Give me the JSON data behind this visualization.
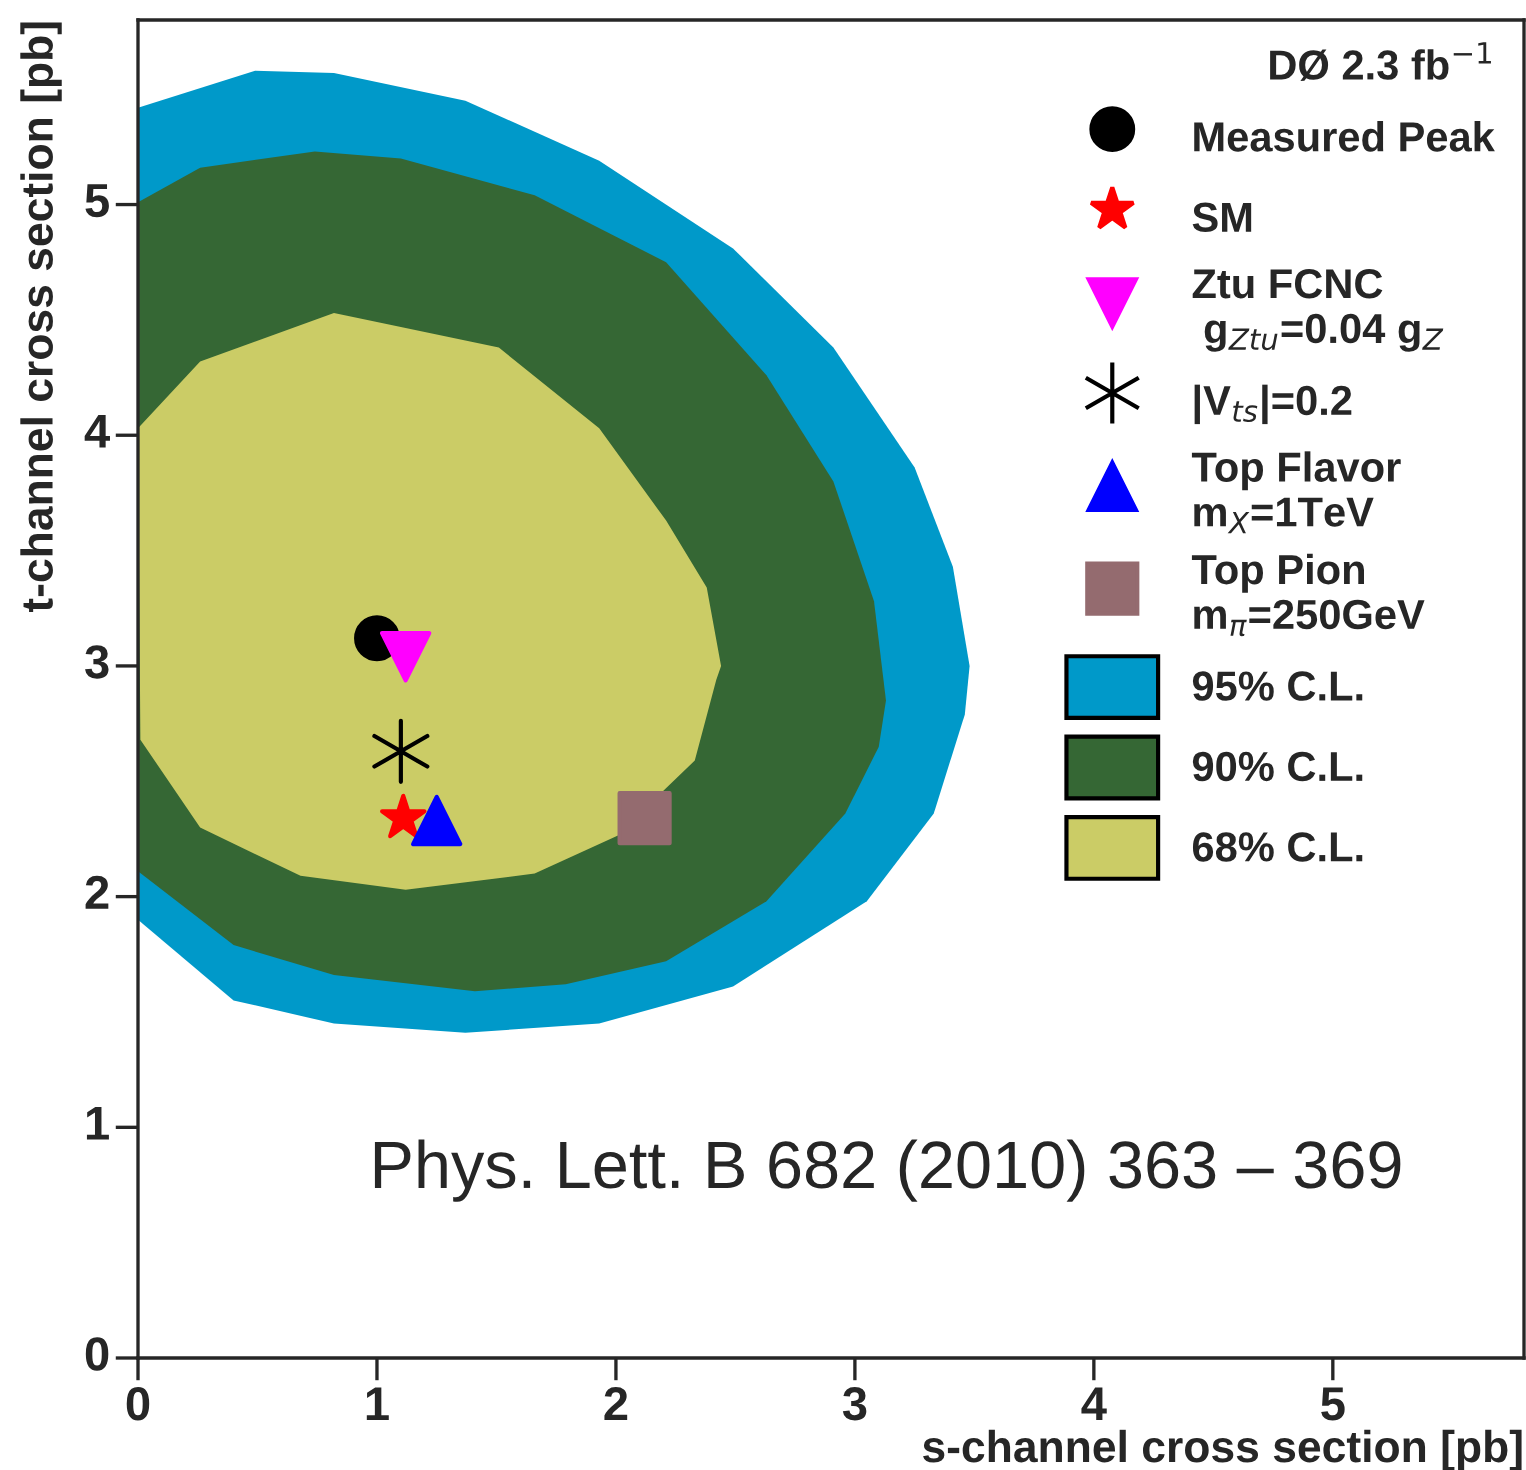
{
  "chart_data": {
    "type": "scatter",
    "xlabel": "s-channel cross section [pb]",
    "ylabel": "t-channel cross section [pb]",
    "legend_title": "DØ 2.3 fb$^{−1}$",
    "xlim": [
      0,
      5.8
    ],
    "ylim": [
      0,
      5.8
    ],
    "xticks": [
      0,
      1,
      2,
      3,
      4,
      5
    ],
    "yticks": [
      0,
      1,
      2,
      3,
      4,
      5
    ],
    "grid": false,
    "legend": "top right",
    "annotations": [
      "Phys. Lett. B 682 (2010) 363 – 369"
    ],
    "series": [
      {
        "name": "95% C.L.",
        "type": "area",
        "color": "#0099c9",
        "x": [
          0,
          0.49,
          0.82,
          1.37,
          1.93,
          2.49,
          2.91,
          3.25,
          3.41,
          3.48,
          3.46,
          3.33,
          3.05,
          2.49,
          1.93,
          1.37,
          0.82,
          0.4,
          0
        ],
        "values": [
          5.42,
          5.58,
          5.57,
          5.45,
          5.19,
          4.81,
          4.38,
          3.86,
          3.43,
          3.0,
          2.79,
          2.36,
          1.98,
          1.61,
          1.45,
          1.41,
          1.45,
          1.55,
          1.9
        ]
      },
      {
        "name": "90% C.L.",
        "type": "area",
        "color": "#356734",
        "x": [
          0,
          0.26,
          0.74,
          1.1,
          1.66,
          2.21,
          2.63,
          2.91,
          3.08,
          3.13,
          3.1,
          2.96,
          2.63,
          2.21,
          1.79,
          1.41,
          0.82,
          0.4,
          0
        ],
        "values": [
          5.01,
          5.16,
          5.23,
          5.2,
          5.04,
          4.75,
          4.26,
          3.8,
          3.28,
          2.85,
          2.65,
          2.36,
          1.98,
          1.72,
          1.62,
          1.59,
          1.66,
          1.79,
          2.11
        ]
      },
      {
        "name": "68% C.L.",
        "type": "area",
        "color": "#cbcc66",
        "x": [
          0,
          0.26,
          0.82,
          1.51,
          1.93,
          2.21,
          2.38,
          2.44,
          2.42,
          2.33,
          2.18,
          2.02,
          1.66,
          1.12,
          0.68,
          0.26,
          0.01
        ],
        "values": [
          4.03,
          4.32,
          4.53,
          4.38,
          4.03,
          3.63,
          3.34,
          3.0,
          2.94,
          2.59,
          2.44,
          2.27,
          2.1,
          2.03,
          2.09,
          2.3,
          2.68
        ]
      },
      {
        "name": "Measured Peak",
        "marker": "circle",
        "color": "#000000",
        "x": [
          1.0
        ],
        "values": [
          3.12
        ]
      },
      {
        "name": "SM",
        "marker": "star",
        "color": "#ff0000",
        "x": [
          1.11
        ],
        "values": [
          2.34
        ]
      },
      {
        "name": "Ztu FCNC\n g$_{Ztu}$=0.04 g$_{Z}$",
        "marker": "triangle_down",
        "color": "#ff00ff",
        "x": [
          1.12
        ],
        "values": [
          3.04
        ]
      },
      {
        "name": "|V$_{ts}$|=0.2",
        "marker": "cross",
        "color": "#000000",
        "x": [
          1.1
        ],
        "values": [
          2.63
        ]
      },
      {
        "name": "Top Flavor\nm$_{X}$=1TeV",
        "marker": "triangle",
        "color": "#0000ff",
        "x": [
          1.25
        ],
        "values": [
          2.33
        ]
      },
      {
        "name": "Top Pion\nm$_{π}$=250GeV",
        "marker": "square",
        "color": "#946b6f",
        "x": [
          2.12
        ],
        "values": [
          2.34
        ]
      }
    ]
  }
}
